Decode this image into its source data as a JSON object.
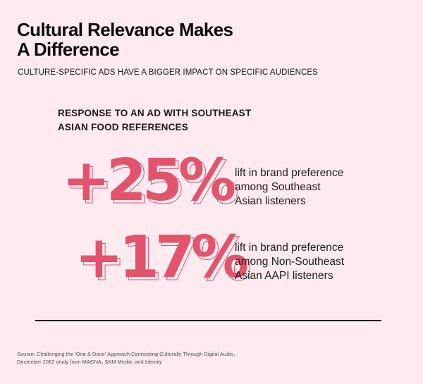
{
  "header": {
    "title_line1": "Cultural Relevance Makes",
    "title_line2": "A Difference",
    "subtitle": "CULTURE-SPECIFIC ADS HAVE A BIGGER IMPACT ON SPECIFIC AUDIENCES"
  },
  "section": {
    "heading_line1": "RESPONSE TO AN AD WITH SOUTHEAST",
    "heading_line2": "ASIAN FOOD REFERENCES"
  },
  "stats": [
    {
      "value": "+25%",
      "desc_line1": "lift in brand preference",
      "desc_line2": "among Southeast",
      "desc_line3": "Asian listeners"
    },
    {
      "value": "+17%",
      "desc_line1": "lift in brand preference",
      "desc_line2": "among Non-Southeast",
      "desc_line3": "Asian AAPI listeners"
    }
  ],
  "source": {
    "line1": "Source: Challenging the 'One & Done' Approach Connecting Culturally Through Digital Audio,",
    "line2": "December 2022 study from MAGNA, SXM Media, and Identity"
  },
  "colors": {
    "background": "#fdebef",
    "accent": "#e3536c",
    "text": "#111111"
  }
}
